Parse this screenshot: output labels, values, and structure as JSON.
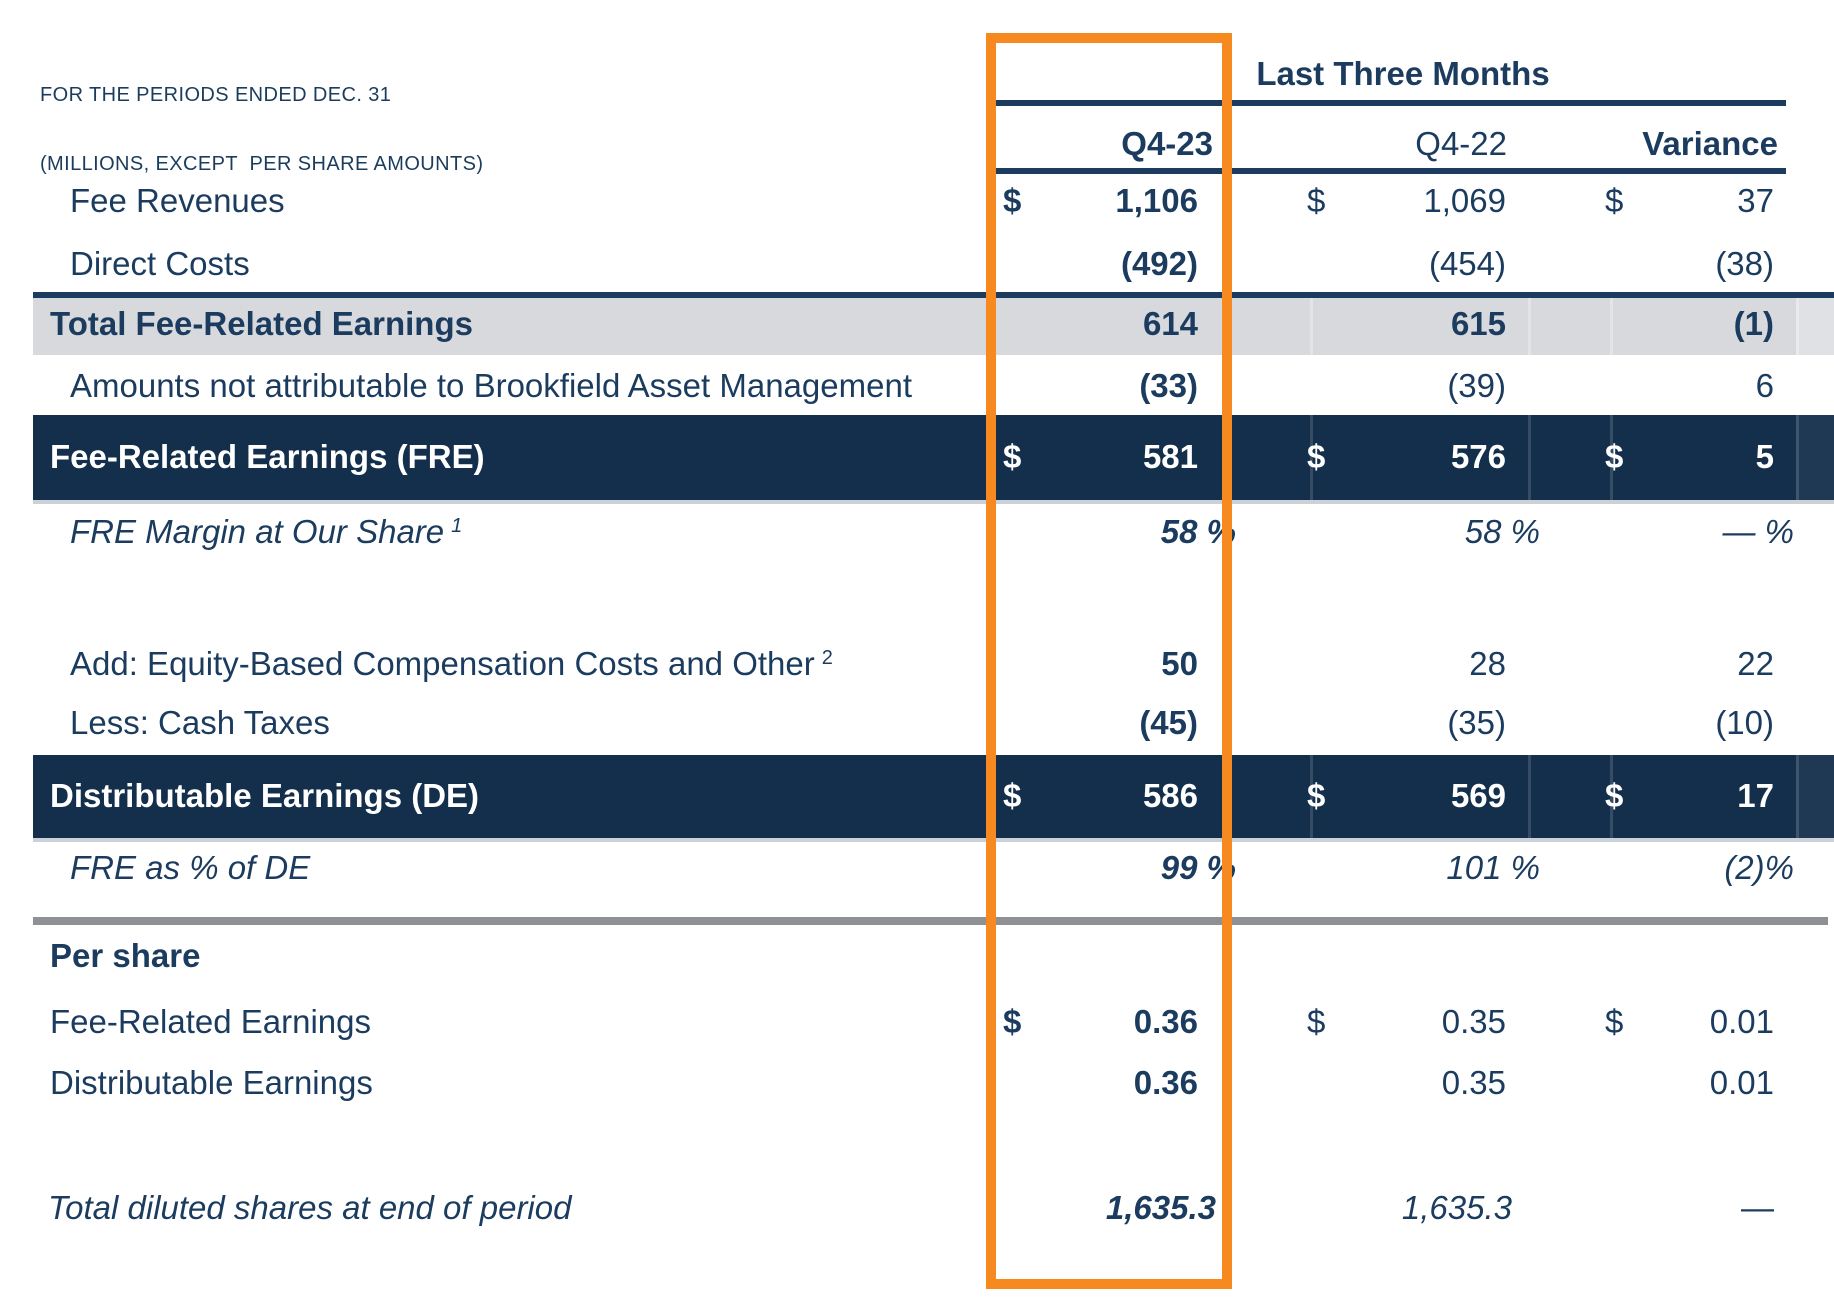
{
  "note": {
    "line1": "FOR THE PERIODS ENDED DEC. 31",
    "line2": "(MILLIONS, EXCEPT  PER SHARE AMOUNTS)"
  },
  "header": {
    "group_label": "Last Three Months",
    "columns": [
      {
        "label": "Q4-23",
        "bold": true
      },
      {
        "label": "Q4-22",
        "bold": false
      },
      {
        "label": "Variance",
        "bold": true
      }
    ]
  },
  "highlight": {
    "column": "Q4-23",
    "color": "#f6891f"
  },
  "colors": {
    "text_navy": "#1b3c5e",
    "band_navy": "#142f4b",
    "band_gray": "#d8d9dd",
    "rule_gray": "#8e9094",
    "accent_orange": "#f6891f",
    "band_text_white": "#ffffff"
  },
  "table": {
    "rows": [
      {
        "label": "Fee Revenues",
        "cells": {
          "q423": {
            "p": "$",
            "n": "1,106",
            "b": true
          },
          "q422": {
            "p": "$",
            "n": "1,069"
          },
          "var": {
            "p": "$",
            "n": "37"
          }
        }
      },
      {
        "label": "Direct Costs",
        "cells": {
          "q423": {
            "n": "(492)",
            "b": true
          },
          "q422": {
            "n": "(454)"
          },
          "var": {
            "n": "(38)"
          }
        }
      },
      {
        "label": "Total Fee-Related Earnings",
        "emphasis": "gray-band",
        "label_bold": true,
        "cells": {
          "q423": {
            "n": "614",
            "b": true
          },
          "q422": {
            "n": "615",
            "b": true
          },
          "var": {
            "n": "(1)",
            "b": true
          }
        }
      },
      {
        "label": "Amounts not attributable to Brookfield Asset Management",
        "cells": {
          "q423": {
            "n": "(33)",
            "b": true
          },
          "q422": {
            "n": "(39)"
          },
          "var": {
            "n": "6"
          }
        }
      },
      {
        "label": "Fee-Related Earnings (FRE)",
        "emphasis": "navy-band",
        "label_bold": true,
        "cells": {
          "q423": {
            "p": "$",
            "n": "581",
            "b": true
          },
          "q422": {
            "p": "$",
            "n": "576",
            "b": true
          },
          "var": {
            "p": "$",
            "n": "5",
            "b": true
          }
        }
      },
      {
        "label": "FRE Margin at Our Share",
        "sup": "1",
        "label_italic": true,
        "cells": {
          "q423": {
            "n": "58",
            "s": " %",
            "b": true,
            "i": true
          },
          "q422": {
            "n": "58",
            "s": " %",
            "i": true
          },
          "var": {
            "n": "—",
            "s": " %",
            "i": true
          }
        }
      },
      {
        "label": "Add: Equity-Based Compensation Costs and Other",
        "sup": "2",
        "cells": {
          "q423": {
            "n": "50",
            "b": true
          },
          "q422": {
            "n": "28"
          },
          "var": {
            "n": "22"
          }
        }
      },
      {
        "label": "Less: Cash Taxes",
        "cells": {
          "q423": {
            "n": "(45)",
            "b": true
          },
          "q422": {
            "n": "(35)"
          },
          "var": {
            "n": "(10)"
          }
        }
      },
      {
        "label": "Distributable Earnings (DE)",
        "emphasis": "navy-band",
        "label_bold": true,
        "cells": {
          "q423": {
            "p": "$",
            "n": "586",
            "b": true
          },
          "q422": {
            "p": "$",
            "n": "569",
            "b": true
          },
          "var": {
            "p": "$",
            "n": "17",
            "b": true
          }
        }
      },
      {
        "label": "FRE as % of DE",
        "label_italic": true,
        "cells": {
          "q423": {
            "n": "99",
            "s": " %",
            "b": true,
            "i": true
          },
          "q422": {
            "n": "101",
            "s": " %",
            "i": true
          },
          "var": {
            "n": "(2)",
            "s": "%",
            "i": true
          }
        }
      },
      {
        "label": "Per share",
        "label_bold": true,
        "cells": {}
      },
      {
        "label": "Fee-Related Earnings",
        "cells": {
          "q423": {
            "p": "$",
            "n": "0.36",
            "b": true
          },
          "q422": {
            "p": "$",
            "n": "0.35"
          },
          "var": {
            "p": "$",
            "n": "0.01"
          }
        }
      },
      {
        "label": "Distributable Earnings",
        "cells": {
          "q423": {
            "n": "0.36",
            "b": true
          },
          "q422": {
            "n": "0.35"
          },
          "var": {
            "n": "0.01"
          }
        }
      },
      {
        "label": "Total diluted shares at end of period",
        "label_italic": true,
        "cells": {
          "q423": {
            "n": "1,635.3",
            "b": true,
            "i": true
          },
          "q422": {
            "n": "1,635.3",
            "i": true
          },
          "var": {
            "n": "—"
          }
        }
      }
    ]
  }
}
